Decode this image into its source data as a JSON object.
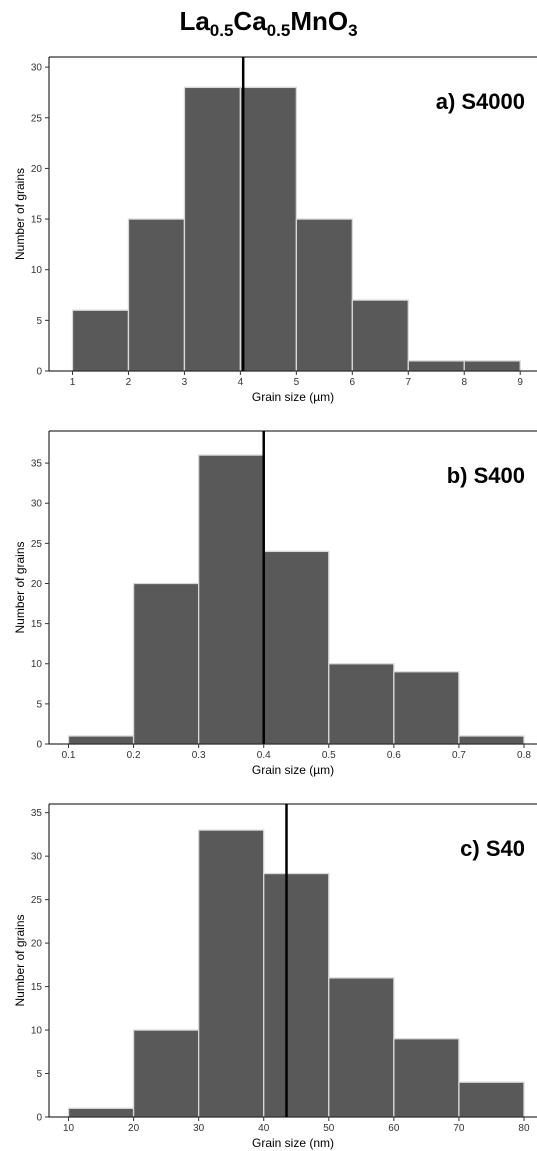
{
  "figure": {
    "title_main": "La",
    "title_sub1": "0.5",
    "title_mid": "Ca",
    "title_sub2": "0.5",
    "title_end": "MnO",
    "title_sub3": "3"
  },
  "chart_data": [
    {
      "type": "bar",
      "panel_label": "a) S4000",
      "xlabel": "Grain size (µm)",
      "ylabel": "Number of grains",
      "bins": [
        [
          1,
          2
        ],
        [
          2,
          3
        ],
        [
          3,
          4
        ],
        [
          4,
          5
        ],
        [
          5,
          6
        ],
        [
          6,
          7
        ],
        [
          7,
          8
        ],
        [
          8,
          9
        ]
      ],
      "values": [
        6,
        15,
        28,
        28,
        15,
        7,
        1,
        1
      ],
      "xlim": [
        0.58,
        9.3
      ],
      "ylim": [
        0,
        31
      ],
      "xticks": [
        1,
        2,
        3,
        4,
        5,
        6,
        7,
        8,
        9
      ],
      "xtick_labels": [
        "1",
        "2",
        "3",
        "4",
        "5",
        "6",
        "7",
        "8",
        "9"
      ],
      "yticks": [
        0,
        5,
        10,
        15,
        20,
        25,
        30
      ],
      "ytick_labels": [
        "0",
        "5",
        "10",
        "15",
        "20",
        "25",
        "30"
      ],
      "mean_line": 4.05,
      "bar_color": "#595959",
      "bar_edge": "#d9d9d9"
    },
    {
      "type": "bar",
      "panel_label": "b) S400",
      "xlabel": "Grain size (µm)",
      "ylabel": "Number of grains",
      "bins": [
        [
          0.1,
          0.2
        ],
        [
          0.2,
          0.3
        ],
        [
          0.3,
          0.4
        ],
        [
          0.4,
          0.5
        ],
        [
          0.5,
          0.6
        ],
        [
          0.6,
          0.7
        ],
        [
          0.7,
          0.8
        ]
      ],
      "values": [
        1,
        20,
        36,
        24,
        10,
        9,
        1
      ],
      "xlim": [
        0.07,
        0.82
      ],
      "ylim": [
        0,
        39
      ],
      "xticks": [
        0.1,
        0.2,
        0.3,
        0.4,
        0.5,
        0.6,
        0.7,
        0.8
      ],
      "xtick_labels": [
        "0.1",
        "0.2",
        "0.3",
        "0.4",
        "0.5",
        "0.6",
        "0.7",
        "0.8"
      ],
      "yticks": [
        0,
        5,
        10,
        15,
        20,
        25,
        30,
        35
      ],
      "ytick_labels": [
        "0",
        "5",
        "10",
        "15",
        "20",
        "25",
        "30",
        "35"
      ],
      "mean_line": 0.4,
      "bar_color": "#595959",
      "bar_edge": "#d9d9d9"
    },
    {
      "type": "bar",
      "panel_label": "c) S40",
      "xlabel": "Grain size (nm)",
      "ylabel": "Number of grains",
      "bins": [
        [
          10,
          20
        ],
        [
          20,
          30
        ],
        [
          30,
          40
        ],
        [
          40,
          50
        ],
        [
          50,
          60
        ],
        [
          60,
          70
        ],
        [
          70,
          80
        ]
      ],
      "values": [
        1,
        10,
        33,
        28,
        16,
        9,
        4
      ],
      "xlim": [
        7,
        82
      ],
      "ylim": [
        0,
        36
      ],
      "xticks": [
        10,
        20,
        30,
        40,
        50,
        60,
        70,
        80
      ],
      "xtick_labels": [
        "10",
        "20",
        "30",
        "40",
        "50",
        "60",
        "70",
        "80"
      ],
      "yticks": [
        0,
        5,
        10,
        15,
        20,
        25,
        30,
        35
      ],
      "ytick_labels": [
        "0",
        "5",
        "10",
        "15",
        "20",
        "25",
        "30",
        "35"
      ],
      "mean_line": 43.5,
      "bar_color": "#595959",
      "bar_edge": "#d9d9d9"
    }
  ]
}
